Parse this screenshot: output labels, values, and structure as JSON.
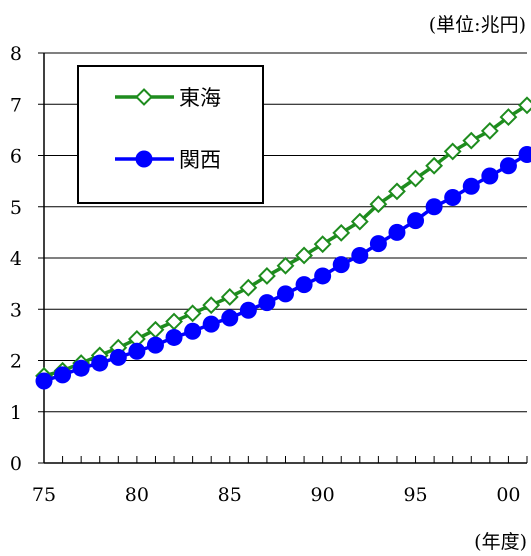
{
  "chart_data": {
    "type": "line",
    "unit_label": "(単位:兆円)",
    "xlabel": "(年度)",
    "ylim": [
      0,
      8
    ],
    "xlim": [
      1975,
      2001
    ],
    "y_ticks": [
      0,
      1,
      2,
      3,
      4,
      5,
      6,
      7,
      8
    ],
    "x_tick_values": [
      1975,
      1980,
      1985,
      1990,
      1995,
      2000
    ],
    "x_tick_labels": [
      "75",
      "80",
      "85",
      "90",
      "95",
      "00"
    ],
    "grid": "horizontal",
    "legend_position": "top-left",
    "x": [
      1975,
      1976,
      1977,
      1978,
      1979,
      1980,
      1981,
      1982,
      1983,
      1984,
      1985,
      1986,
      1987,
      1988,
      1989,
      1990,
      1991,
      1992,
      1993,
      1994,
      1995,
      1996,
      1997,
      1998,
      1999,
      2000,
      2001
    ],
    "series": [
      {
        "name": "東海",
        "color": "#1e8c1e",
        "marker": "diamond-open",
        "values": [
          1.7,
          1.8,
          1.95,
          2.1,
          2.25,
          2.42,
          2.6,
          2.76,
          2.92,
          3.08,
          3.24,
          3.42,
          3.65,
          3.85,
          4.05,
          4.27,
          4.49,
          4.71,
          5.05,
          5.3,
          5.55,
          5.8,
          6.08,
          6.29,
          6.48,
          6.75,
          6.98
        ]
      },
      {
        "name": "関西",
        "color": "#0000ff",
        "marker": "circle-filled",
        "values": [
          1.6,
          1.72,
          1.85,
          1.95,
          2.06,
          2.18,
          2.3,
          2.45,
          2.57,
          2.71,
          2.83,
          2.98,
          3.13,
          3.3,
          3.48,
          3.65,
          3.87,
          4.05,
          4.28,
          4.5,
          4.73,
          5.0,
          5.18,
          5.4,
          5.6,
          5.8,
          6.02
        ]
      }
    ]
  }
}
